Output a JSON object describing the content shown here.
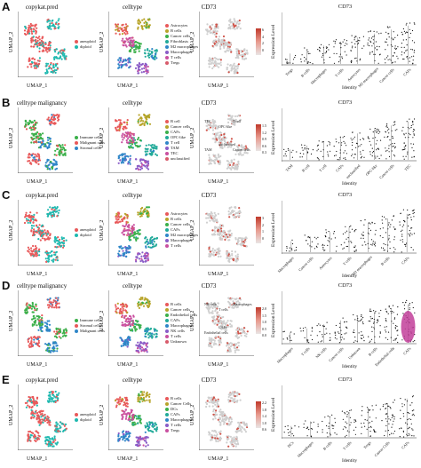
{
  "colors": {
    "aneuploid": "#e8595a",
    "diploid": "#1fb9b0",
    "cd73_high": "#c0392b",
    "cd73_low": "#d0d0d0",
    "violin_fill": "#d1d1d1",
    "violin_highlight": "#c2409a"
  },
  "rows": [
    {
      "label": "A",
      "p1": {
        "title": "copykat.pred",
        "legend": [
          "aneuploid",
          "diploid"
        ]
      },
      "p2": {
        "title": "celltype",
        "legend": [
          "Astrocytes",
          "B cells",
          "Cancer cells",
          "Fibroblasts",
          "M2 macrophages",
          "Macrophages",
          "T cells",
          "Tregs"
        ]
      },
      "p3": {
        "title": "CD73",
        "ticks": [
          "6",
          "4",
          "2",
          "0"
        ]
      },
      "violin": {
        "title": "CD73",
        "ylabel": "Expression Level",
        "xlabel": "Identity",
        "cats": [
          "Tregs",
          "B cells",
          "Macrophages",
          "T cells",
          "Astrocytes",
          "M2 macrophages",
          "Cancer cells",
          "CAFs"
        ]
      }
    },
    {
      "label": "B",
      "p1": {
        "title": "celltype malignancy",
        "legend": [
          "Immune cells",
          "Malignant cells",
          "Stromal cells"
        ]
      },
      "p2": {
        "title": "celltype",
        "legend": [
          "B cell",
          "Cancer cells",
          "CAFs",
          "OPC-like",
          "T cell",
          "TAM",
          "TEC",
          "unclassified"
        ]
      },
      "p3": {
        "title": "CD73",
        "ticks": [
          "1.5",
          "1.2",
          "0.9",
          "0.6",
          "0.3"
        ],
        "annotations": [
          "TEC",
          "OPC-like",
          "T cell",
          "TAM",
          "unclassified",
          "Cancer cells"
        ]
      },
      "violin": {
        "title": "CD73",
        "ylabel": "Expression Level",
        "xlabel": "Identity",
        "cats": [
          "TAM",
          "B cell",
          "T cell",
          "CAFs",
          "unclassified",
          "OPC-like",
          "Cancer cells",
          "TEC"
        ]
      }
    },
    {
      "label": "C",
      "p1": {
        "title": "copykat.pred",
        "legend": [
          "aneuploid",
          "diploid"
        ]
      },
      "p2": {
        "title": "celltype",
        "legend": [
          "Astrocytes",
          "B cells",
          "Cancer cells",
          "CAFs",
          "M2 macrophages",
          "Macrophages",
          "T cells"
        ]
      },
      "p3": {
        "title": "CD73",
        "ticks": [
          "3",
          "2",
          "1",
          "0"
        ]
      },
      "violin": {
        "title": "CD73",
        "ylabel": "Expression Level",
        "xlabel": "Identity",
        "cats": [
          "Macrophages",
          "Cancer cells",
          "Astrocytes",
          "T cells",
          "M2 macrophages",
          "B cells",
          "CAFs"
        ]
      }
    },
    {
      "label": "D",
      "p1": {
        "title": "celltype malignancy",
        "legend": [
          "Immune cells",
          "Stromal cells",
          "Malignant cells"
        ]
      },
      "p2": {
        "title": "celltype",
        "legend": [
          "B cells",
          "Cancer cells",
          "Endothelial cells",
          "CAFs",
          "Macrophages",
          "NK cells",
          "T cells",
          "Unknown"
        ]
      },
      "p3": {
        "title": "CD73",
        "ticks": [
          "2.0",
          "1.5",
          "1.0",
          "0.5",
          "0.0"
        ],
        "annotations": [
          "NK cells",
          "T cells",
          "Macrophages",
          "Endothelial cells",
          "CAFs"
        ]
      },
      "violin": {
        "title": "CD73",
        "ylabel": "Expression Level",
        "xlabel": "Identity",
        "cats": [
          "Macrophages",
          "T cells",
          "NK cells",
          "Cancer cells",
          "Unknown",
          "B cells",
          "Endothelial cells",
          "CAFs"
        ]
      }
    },
    {
      "label": "E",
      "p1": {
        "title": "copykat.pred",
        "legend": [
          "aneuploid",
          "diploid"
        ]
      },
      "p2": {
        "title": "celltype",
        "legend": [
          "B cells",
          "Cancer Cells",
          "DCs",
          "CAFs",
          "Macrophages",
          "T cells",
          "Tregs"
        ]
      },
      "p3": {
        "title": "CD73",
        "ticks": [
          "2.2",
          "1.8",
          "1.4",
          "1.0",
          "0.6"
        ]
      },
      "violin": {
        "title": "CD73",
        "ylabel": "Expression Level",
        "xlabel": "Identity",
        "cats": [
          "DCs",
          "Macrophages",
          "B cells",
          "T cells",
          "Tregs",
          "Cancer Cells",
          "CAFs"
        ]
      }
    }
  ],
  "axis": {
    "umap1": "UMAP_1",
    "umap2": "UMAP_2"
  }
}
